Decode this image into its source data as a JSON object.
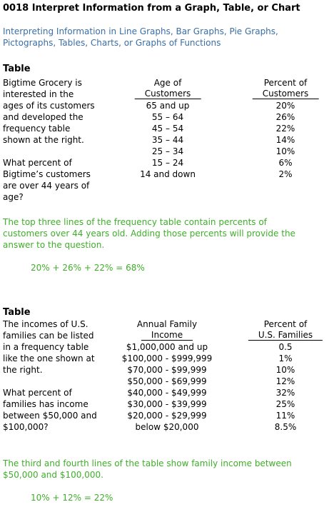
{
  "title": "0018 Interpret Information from a Graph, Table, or Chart",
  "subtitle": [
    "Interpreting Information in Line Graphs, Bar Graphs, Pie Graphs,",
    "Pictographs, Tables, Charts, or Graphs of Functions"
  ],
  "sections": [
    {
      "heading": "Table",
      "description": [
        "Bigtime Grocery is",
        "interested in the",
        "ages of its customers",
        "and developed the",
        "frequency table",
        "shown at the right."
      ],
      "question": [
        "What percent of",
        "Bigtime’s customers",
        "are over 44 years of",
        "age?"
      ],
      "table": {
        "headers": [
          [
            "Age of",
            "Customers"
          ],
          [
            "Percent of",
            "Customers"
          ]
        ],
        "rows": [
          [
            "65 and up",
            "20%"
          ],
          [
            "55 – 64",
            "26%"
          ],
          [
            "45 – 54",
            "22%"
          ],
          [
            "35 – 44",
            "14%"
          ],
          [
            "25 – 34",
            "10%"
          ],
          [
            "15 – 24",
            "6%"
          ],
          [
            "14 and down",
            "2%"
          ]
        ]
      },
      "explanation": [
        "The top three lines of the frequency table contain percents of",
        "customers over 44 years old. Adding those percents will provide the",
        "answer to the question."
      ],
      "equation": "20% + 26% + 22% = 68%"
    },
    {
      "heading": "Table",
      "description": [
        "The incomes of U.S.",
        "families can be listed",
        "in a frequency table",
        "like the one shown at",
        "the right."
      ],
      "question": [
        "What percent of",
        "families has income",
        "between $50,000 and",
        "$100,000?"
      ],
      "table": {
        "headers": [
          [
            "Annual Family",
            "Income"
          ],
          [
            "Percent of",
            "U.S. Families"
          ]
        ],
        "rows": [
          [
            "$1,000,000 and up",
            "0.5"
          ],
          [
            "$100,000 - $999,999",
            "1%"
          ],
          [
            "$70,000 - $99,999",
            "10%"
          ],
          [
            "$50,000 - $69,999",
            "12%"
          ],
          [
            "$40,000 - $49,999",
            "32%"
          ],
          [
            "$30,000 - $39,999",
            "25%"
          ],
          [
            "$20,000 - $29,999",
            "11%"
          ],
          [
            "below $20,000",
            "8.5%"
          ]
        ]
      },
      "explanation": [
        "The third and fourth lines of the table show family income between",
        "$50,000 and $100,000."
      ],
      "equation": "10% + 12% = 22%"
    }
  ]
}
